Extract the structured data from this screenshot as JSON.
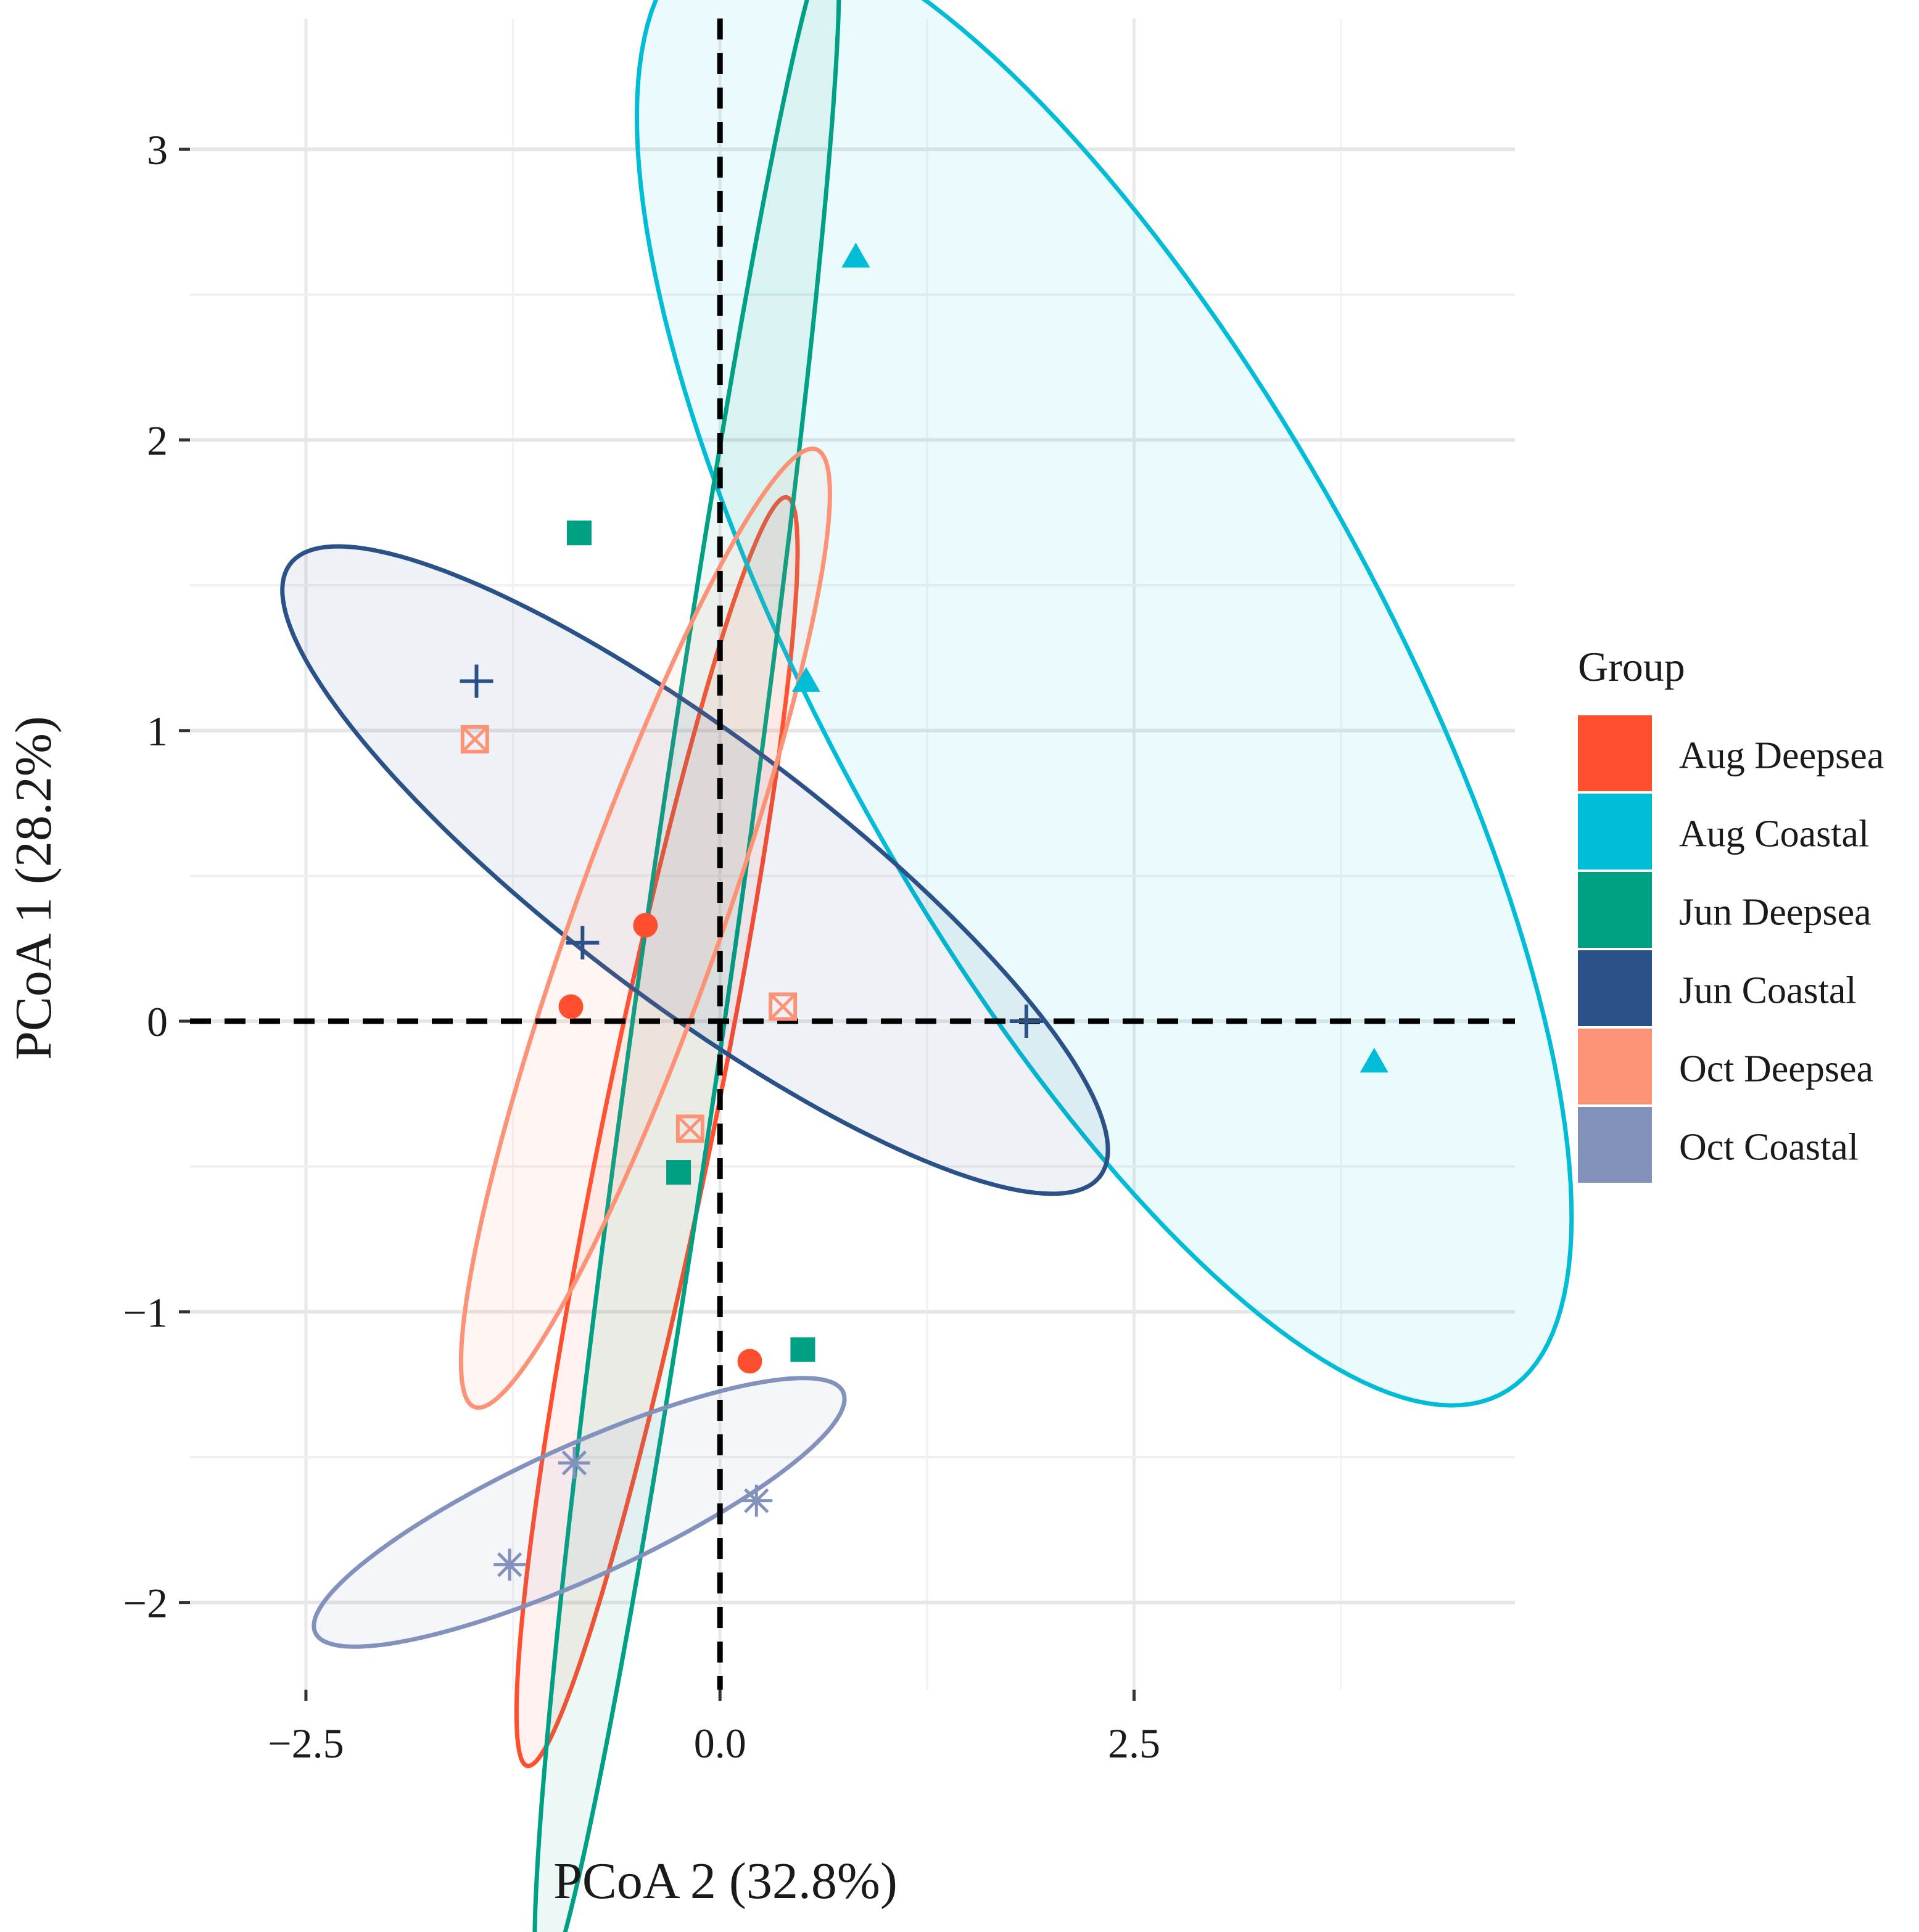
{
  "chart_data": {
    "type": "scatter",
    "xlabel": "PCoA 2 (32.8%)",
    "ylabel": "PCoA 1 (28.2%)",
    "xlim": [
      -3.2,
      4.8
    ],
    "ylim": [
      -2.3,
      3.45
    ],
    "x_ticks": [
      {
        "value": -2.5,
        "label": "−2.5"
      },
      {
        "value": 0.0,
        "label": "0.0"
      },
      {
        "value": 2.5,
        "label": "2.5"
      }
    ],
    "y_ticks": [
      {
        "value": 3,
        "label": "3"
      },
      {
        "value": 2,
        "label": "2"
      },
      {
        "value": 1,
        "label": "1"
      },
      {
        "value": 0,
        "label": "0"
      },
      {
        "value": -1,
        "label": "−1"
      },
      {
        "value": -2,
        "label": "−2"
      }
    ],
    "reference_lines": {
      "x": 0,
      "y": 0,
      "style": "dashed"
    },
    "grid": true,
    "legend": {
      "title": "Group",
      "position": "right"
    },
    "series": [
      {
        "name": "Aug Deepsea",
        "color": "#ff4f2e",
        "shape": "circle",
        "points": [
          [
            -0.45,
            0.33
          ],
          [
            -0.9,
            0.05
          ],
          [
            0.18,
            -1.17
          ]
        ],
        "ellipse": {
          "center": [
            -0.38,
            -0.38
          ],
          "a": 2.32,
          "b": 0.32,
          "angle_deg": 70
        }
      },
      {
        "name": "Aug Coastal",
        "color": "#00bcd6",
        "shape": "triangle",
        "points": [
          [
            0.82,
            2.63
          ],
          [
            0.52,
            1.17
          ],
          [
            3.95,
            -0.14
          ]
        ],
        "ellipse": {
          "center": [
            2.32,
            1.22
          ],
          "a": 3.55,
          "b": 1.35,
          "angle_deg": -41
        }
      },
      {
        "name": "Jun Deepsea",
        "color": "#00a084",
        "shape": "square",
        "points": [
          [
            -0.85,
            1.68
          ],
          [
            -0.25,
            -0.52
          ],
          [
            0.5,
            -1.13
          ]
        ],
        "ellipse": {
          "center": [
            -0.2,
            0.2
          ],
          "a": 3.64,
          "b": 0.27,
          "angle_deg": 76
        }
      },
      {
        "name": "Jun Coastal",
        "color": "#2b5189",
        "shape": "plus",
        "points": [
          [
            -1.47,
            1.17
          ],
          [
            -0.83,
            0.27
          ],
          [
            1.85,
            0.0
          ]
        ],
        "ellipse": {
          "center": [
            -0.15,
            0.52
          ],
          "a": 2.68,
          "b": 0.52,
          "angle_deg": -22
        }
      },
      {
        "name": "Oct Deepsea",
        "color": "#fc9276",
        "shape": "square-cross",
        "points": [
          [
            -1.48,
            0.97
          ],
          [
            0.38,
            0.05
          ],
          [
            -0.18,
            -0.37
          ]
        ],
        "ellipse": {
          "center": [
            -0.45,
            0.32
          ],
          "a": 1.95,
          "b": 0.4,
          "angle_deg": 57
        }
      },
      {
        "name": "Oct Coastal",
        "color": "#8292bd",
        "shape": "asterisk",
        "points": [
          [
            -0.88,
            -1.52
          ],
          [
            -1.27,
            -1.87
          ],
          [
            0.22,
            -1.65
          ]
        ],
        "ellipse": {
          "center": [
            -0.85,
            -1.69
          ],
          "a": 1.65,
          "b": 0.24,
          "angle_deg": 14
        }
      }
    ]
  }
}
